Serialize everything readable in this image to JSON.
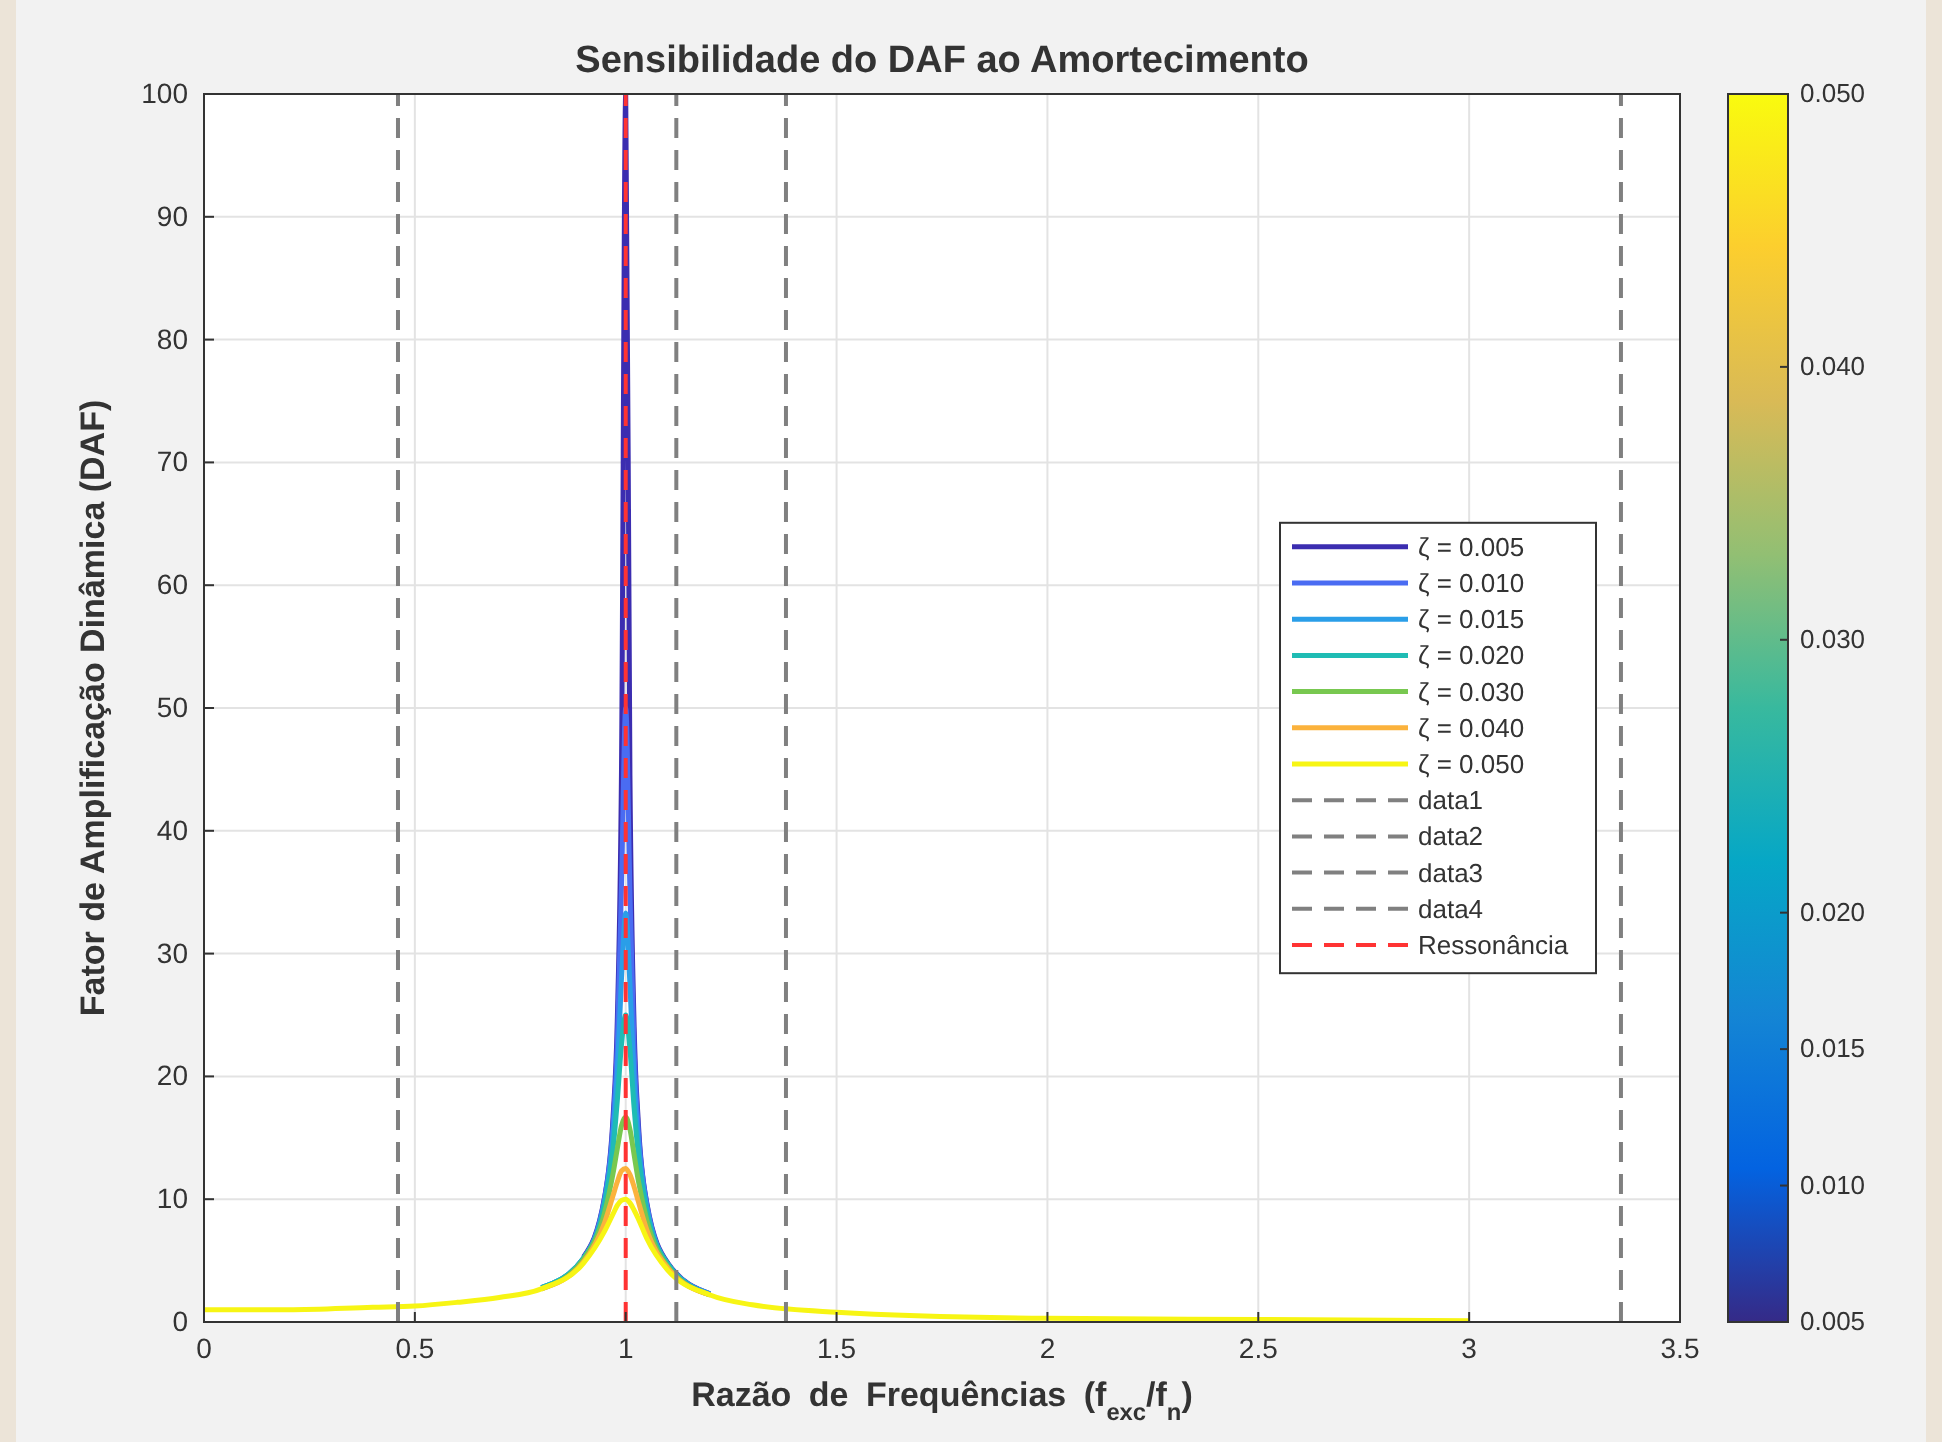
{
  "chart_data": {
    "type": "line",
    "title": "Sensibilidade do DAF ao Amortecimento",
    "xlabel": "Razão de Frequências (f$_{exc}$/f$_{n}$)",
    "ylabel": "Fator de Amplificação Dinâmica (DAF)",
    "x": [
      0,
      0.2,
      0.4,
      0.5,
      0.6,
      0.7,
      0.8,
      0.9,
      0.95,
      0.97,
      0.98,
      0.99,
      1,
      1.01,
      1.02,
      1.03,
      1.05,
      1.1,
      1.2,
      1.3,
      1.5,
      2,
      2.5,
      3
    ],
    "series": [
      {
        "name": "ζ = 0.005",
        "color": "#3b2db0",
        "values": [
          null,
          null,
          null,
          null,
          null,
          null,
          null,
          5.3,
          10.2,
          16.7,
          24.5,
          45,
          100,
          44.5,
          24,
          16.2,
          9.7,
          4.8,
          2.3,
          null,
          null,
          null,
          null,
          null
        ]
      },
      {
        "name": "ζ = 0.010",
        "color": "#4a6cf2",
        "values": [
          null,
          null,
          null,
          null,
          null,
          null,
          2.8,
          5.2,
          10.1,
          16.1,
          22.6,
          35.6,
          50,
          35.1,
          22.1,
          15.6,
          9.6,
          4.7,
          2.3,
          null,
          null,
          null,
          null,
          null
        ]
      },
      {
        "name": "ζ = 0.015",
        "color": "#2a9ee8",
        "values": [
          null,
          null,
          null,
          null,
          null,
          null,
          2.8,
          5.2,
          9.8,
          15.2,
          20.3,
          28,
          33.3,
          27.5,
          19.7,
          14.6,
          9.3,
          4.7,
          2.3,
          null,
          null,
          null,
          null,
          null
        ]
      },
      {
        "name": "ζ = 0.020",
        "color": "#1fbcb4",
        "values": [
          null,
          null,
          null,
          null,
          null,
          null,
          2.8,
          5.2,
          9.6,
          14.1,
          18,
          22.6,
          25,
          22.2,
          17.4,
          13.6,
          9,
          4.7,
          2.2,
          null,
          null,
          null,
          null,
          null
        ]
      },
      {
        "name": "ζ = 0.030",
        "color": "#78c850",
        "values": [
          null,
          null,
          null,
          null,
          null,
          null,
          2.7,
          5.1,
          8.9,
          12.1,
          14.1,
          16,
          16.7,
          15.7,
          13.6,
          11.5,
          8.3,
          4.5,
          2.2,
          null,
          null,
          null,
          null,
          null
        ]
      },
      {
        "name": "ζ = 0.040",
        "color": "#fbb23c",
        "values": [
          null,
          null,
          null,
          null,
          null,
          null,
          2.7,
          4.9,
          8.1,
          10.3,
          11.4,
          12.3,
          12.5,
          12,
          11,
          9.8,
          7.5,
          4.4,
          2.2,
          null,
          null,
          null,
          null,
          null
        ]
      },
      {
        "name": "ζ = 0.050",
        "color": "#f7f514",
        "values": [
          1,
          1,
          1.2,
          1.3,
          1.6,
          2,
          2.7,
          4.8,
          7.4,
          8.8,
          9.5,
          9.9,
          10,
          9.7,
          9.1,
          8.4,
          6.8,
          4.2,
          2.2,
          1.4,
          0.8,
          0.3,
          0.2,
          0.1
        ]
      },
      {
        "name": "data1",
        "color": "#808080",
        "line_style": "dashed",
        "x": [
          0.46,
          0.46
        ],
        "values": [
          0,
          100
        ]
      },
      {
        "name": "data2",
        "color": "#808080",
        "line_style": "dashed",
        "x": [
          1.12,
          1.12
        ],
        "values": [
          0,
          100
        ]
      },
      {
        "name": "data3",
        "color": "#808080",
        "line_style": "dashed",
        "x": [
          1.38,
          1.38
        ],
        "values": [
          0,
          100
        ]
      },
      {
        "name": "data4",
        "color": "#808080",
        "line_style": "dashed",
        "x": [
          3.36,
          3.36
        ],
        "values": [
          0,
          100
        ]
      },
      {
        "name": "Ressonância",
        "color": "#ff3333",
        "line_style": "dashed",
        "x": [
          1,
          1
        ],
        "values": [
          0,
          100
        ]
      }
    ],
    "xlim": [
      0,
      3.5
    ],
    "xticks": [
      0,
      0.5,
      1,
      1.5,
      2,
      2.5,
      3,
      3.5
    ],
    "ylim": [
      0,
      100
    ],
    "yticks": [
      0,
      10,
      20,
      30,
      40,
      50,
      60,
      70,
      80,
      90,
      100
    ],
    "clim": [
      0.005,
      0.05
    ],
    "cticks": [
      {
        "value": 0.005,
        "label": "0.005"
      },
      {
        "value": 0.01,
        "label": "0.010"
      },
      {
        "value": 0.015,
        "label": "0.015"
      },
      {
        "value": 0.02,
        "label": "0.020"
      },
      {
        "value": 0.03,
        "label": "0.030"
      },
      {
        "value": 0.04,
        "label": "0.040"
      },
      {
        "value": 0.05,
        "label": "0.050"
      }
    ],
    "grid": true,
    "legend": "right",
    "marker": "none",
    "line_style": "solid"
  }
}
